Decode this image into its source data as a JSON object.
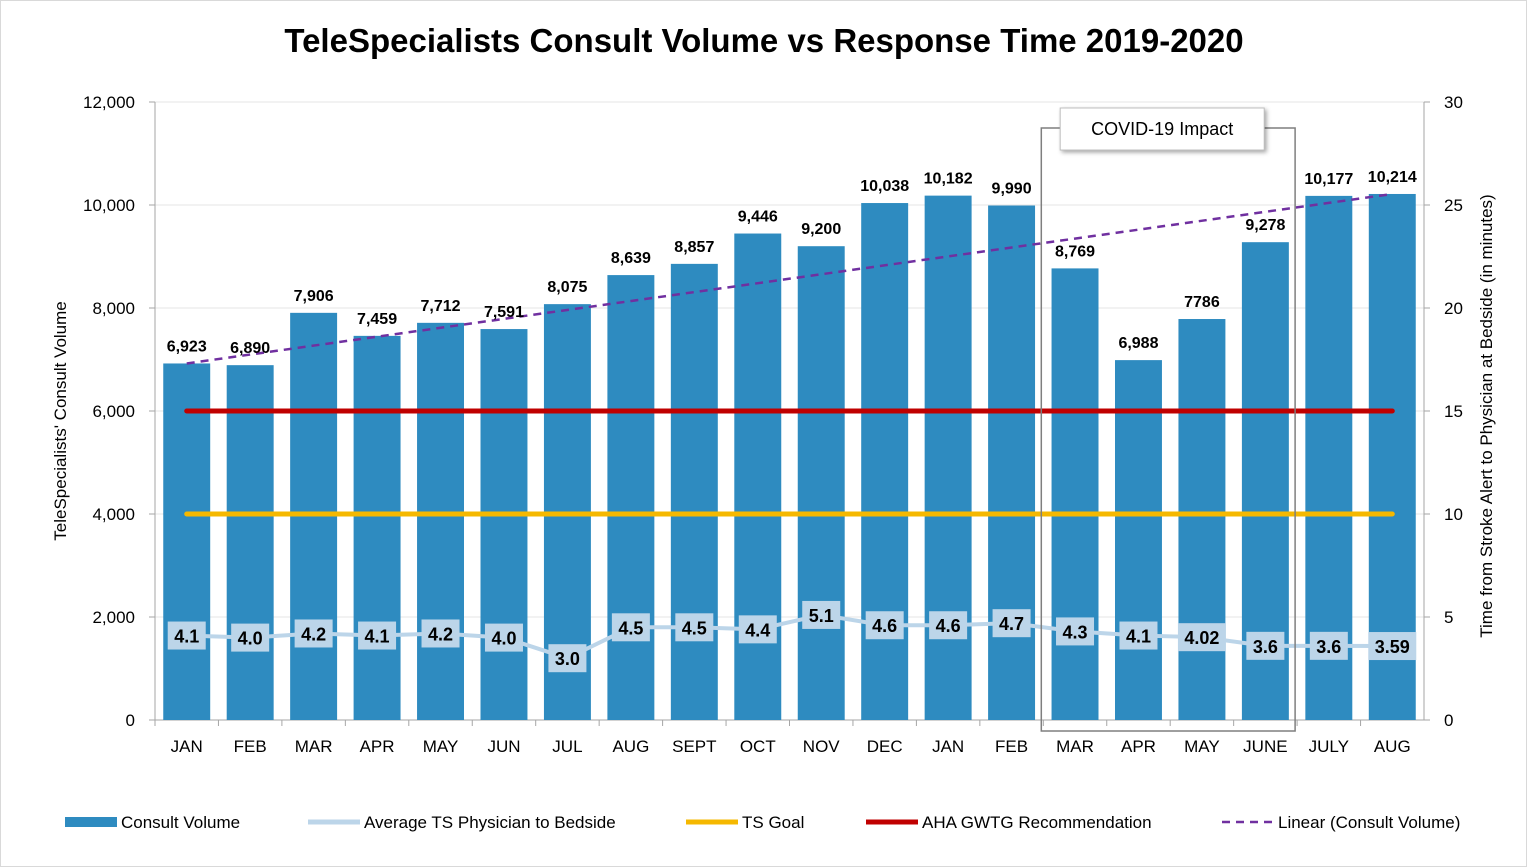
{
  "chart_data": {
    "type": "bar",
    "title": "TeleSpecialists Consult Volume vs Response Time 2019-2020",
    "categories": [
      "JAN",
      "FEB",
      "MAR",
      "APR",
      "MAY",
      "JUN",
      "JUL",
      "AUG",
      "SEPT",
      "OCT",
      "NOV",
      "DEC",
      "JAN",
      "FEB",
      "MAR",
      "APR",
      "MAY",
      "JUNE",
      "JULY",
      "AUG"
    ],
    "ylabel": "TeleSpecialists' Consult Volume",
    "y2label": "Time from Stroke Alert to Physician at Bedside (in minutes)",
    "ylim": [
      0,
      12000
    ],
    "y2lim": [
      0,
      30
    ],
    "yticks": [
      "0",
      "2,000",
      "4,000",
      "6,000",
      "8,000",
      "10,000",
      "12,000"
    ],
    "y2ticks": [
      "0",
      "5",
      "10",
      "15",
      "20",
      "25",
      "30"
    ],
    "series": [
      {
        "name": "Consult Volume",
        "type": "bar",
        "axis": "left",
        "color": "#2e8bc0",
        "values": [
          6923,
          6890,
          7906,
          7459,
          7712,
          7591,
          8075,
          8639,
          8857,
          9446,
          9200,
          10038,
          10182,
          9990,
          8769,
          6988,
          7786,
          9278,
          10177,
          10214
        ],
        "labels": [
          "6,923",
          "6,890",
          "7,906",
          "7,459",
          "7,712",
          "7,591",
          "8,075",
          "8,639",
          "8,857",
          "9,446",
          "9,200",
          "10,038",
          "10,182",
          "9,990",
          "8,769",
          "6,988",
          "7786",
          "9,278",
          "10,177",
          "10,214"
        ]
      },
      {
        "name": "Average TS Physician to Bedside",
        "type": "line",
        "axis": "right",
        "color": "#bcd5e9",
        "values": [
          4.1,
          4.0,
          4.2,
          4.1,
          4.2,
          4.0,
          3.0,
          4.5,
          4.5,
          4.4,
          5.1,
          4.6,
          4.6,
          4.7,
          4.3,
          4.1,
          4.02,
          3.6,
          3.6,
          3.59
        ],
        "labels": [
          "4.1",
          "4.0",
          "4.2",
          "4.1",
          "4.2",
          "4.0",
          "3.0",
          "4.5",
          "4.5",
          "4.4",
          "5.1",
          "4.6",
          "4.6",
          "4.7",
          "4.3",
          "4.1",
          "4.02",
          "3.6",
          "3.6",
          "3.59"
        ]
      },
      {
        "name": "TS Goal",
        "type": "line",
        "axis": "right",
        "color": "#f5b800",
        "value": 10
      },
      {
        "name": "AHA GWTG Recommendation",
        "type": "line",
        "axis": "right",
        "color": "#c00000",
        "value": 15
      },
      {
        "name": "Linear (Consult Volume)",
        "type": "trendline",
        "axis": "left",
        "color": "#7030a0",
        "start": 6923,
        "end": 10214
      }
    ],
    "annotation": {
      "text": "COVID-19 Impact",
      "from_index": 14,
      "to_index": 17
    },
    "legend_position": "bottom"
  }
}
